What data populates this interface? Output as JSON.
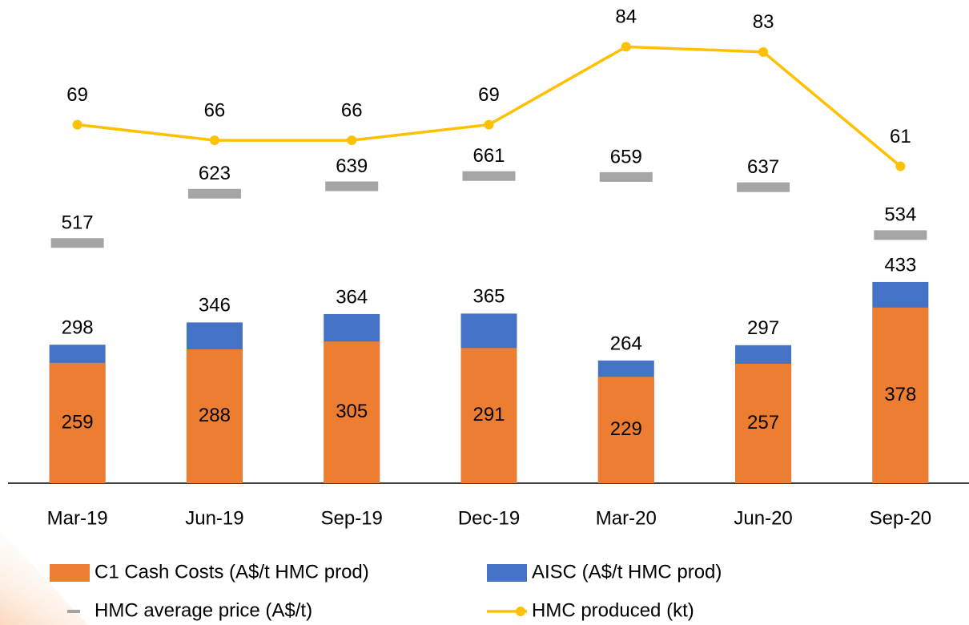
{
  "chart_data": {
    "type": "bar_line",
    "categories": [
      "Mar-19",
      "Jun-19",
      "Sep-19",
      "Dec-19",
      "Mar-20",
      "Jun-20",
      "Sep-20"
    ],
    "series": [
      {
        "name": "C1 Cash Costs (A$/t HMC prod)",
        "color": "#ed7d31",
        "kind": "bar",
        "values": [
          259,
          288,
          305,
          291,
          229,
          257,
          378
        ]
      },
      {
        "name": "AISC (A$/t HMC prod)",
        "color": "#4472c4",
        "kind": "bar_behind",
        "values": [
          298,
          346,
          364,
          365,
          264,
          297,
          433
        ]
      },
      {
        "name": "HMC average price (A$/t)",
        "color": "#a5a5a5",
        "kind": "dash",
        "values": [
          517,
          623,
          639,
          661,
          659,
          637,
          534
        ]
      },
      {
        "name": "HMC produced (kt)",
        "color": "#ffc000",
        "kind": "line",
        "axis": "y2",
        "values": [
          69,
          66,
          66,
          69,
          84,
          83,
          61
        ]
      }
    ],
    "ylim": [
      0,
      1040
    ],
    "y2lim": [
      0,
      93
    ]
  }
}
